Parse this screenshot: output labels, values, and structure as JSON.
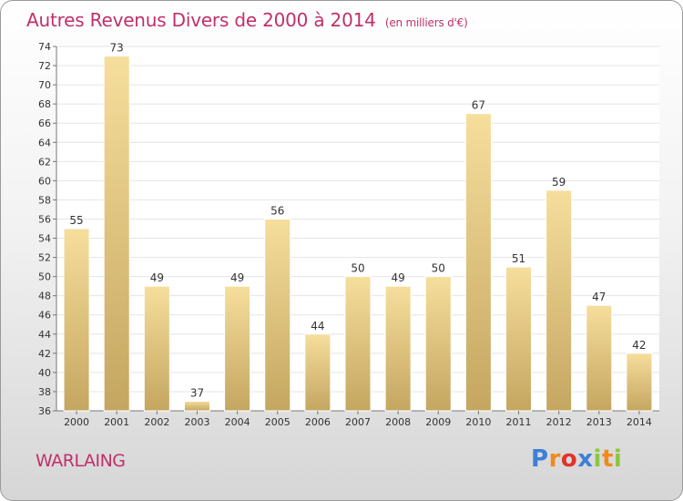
{
  "header": {
    "title": "Autres Revenus Divers de 2000 à 2014",
    "subtitle": "(en milliers d'€)"
  },
  "footer": {
    "place": "WARLAING",
    "logo": {
      "letters": [
        "P",
        "r",
        "o",
        "x",
        "i",
        "t",
        "i"
      ],
      "colors": [
        "#3d7fd6",
        "#f08a1c",
        "#e0342c",
        "#3d7fd6",
        "#8cc63f",
        "#f08a1c",
        "#8cc63f"
      ]
    }
  },
  "colors": {
    "accent": "#c0306a",
    "bar_light": "#f6de9c",
    "bar_dark": "#c4a660",
    "grid": "#e4e4e4"
  },
  "chart_data": {
    "type": "bar",
    "categories": [
      "2000",
      "2001",
      "2002",
      "2003",
      "2004",
      "2005",
      "2006",
      "2007",
      "2008",
      "2009",
      "2010",
      "2011",
      "2012",
      "2013",
      "2014"
    ],
    "values": [
      55,
      73,
      49,
      37,
      49,
      56,
      44,
      50,
      49,
      50,
      67,
      51,
      59,
      47,
      42
    ],
    "ylim": [
      36,
      74
    ],
    "yticks": [
      36,
      38,
      40,
      42,
      44,
      46,
      48,
      50,
      52,
      54,
      56,
      58,
      60,
      62,
      64,
      66,
      68,
      70,
      72,
      74
    ],
    "grid": true,
    "data_labels": true
  }
}
